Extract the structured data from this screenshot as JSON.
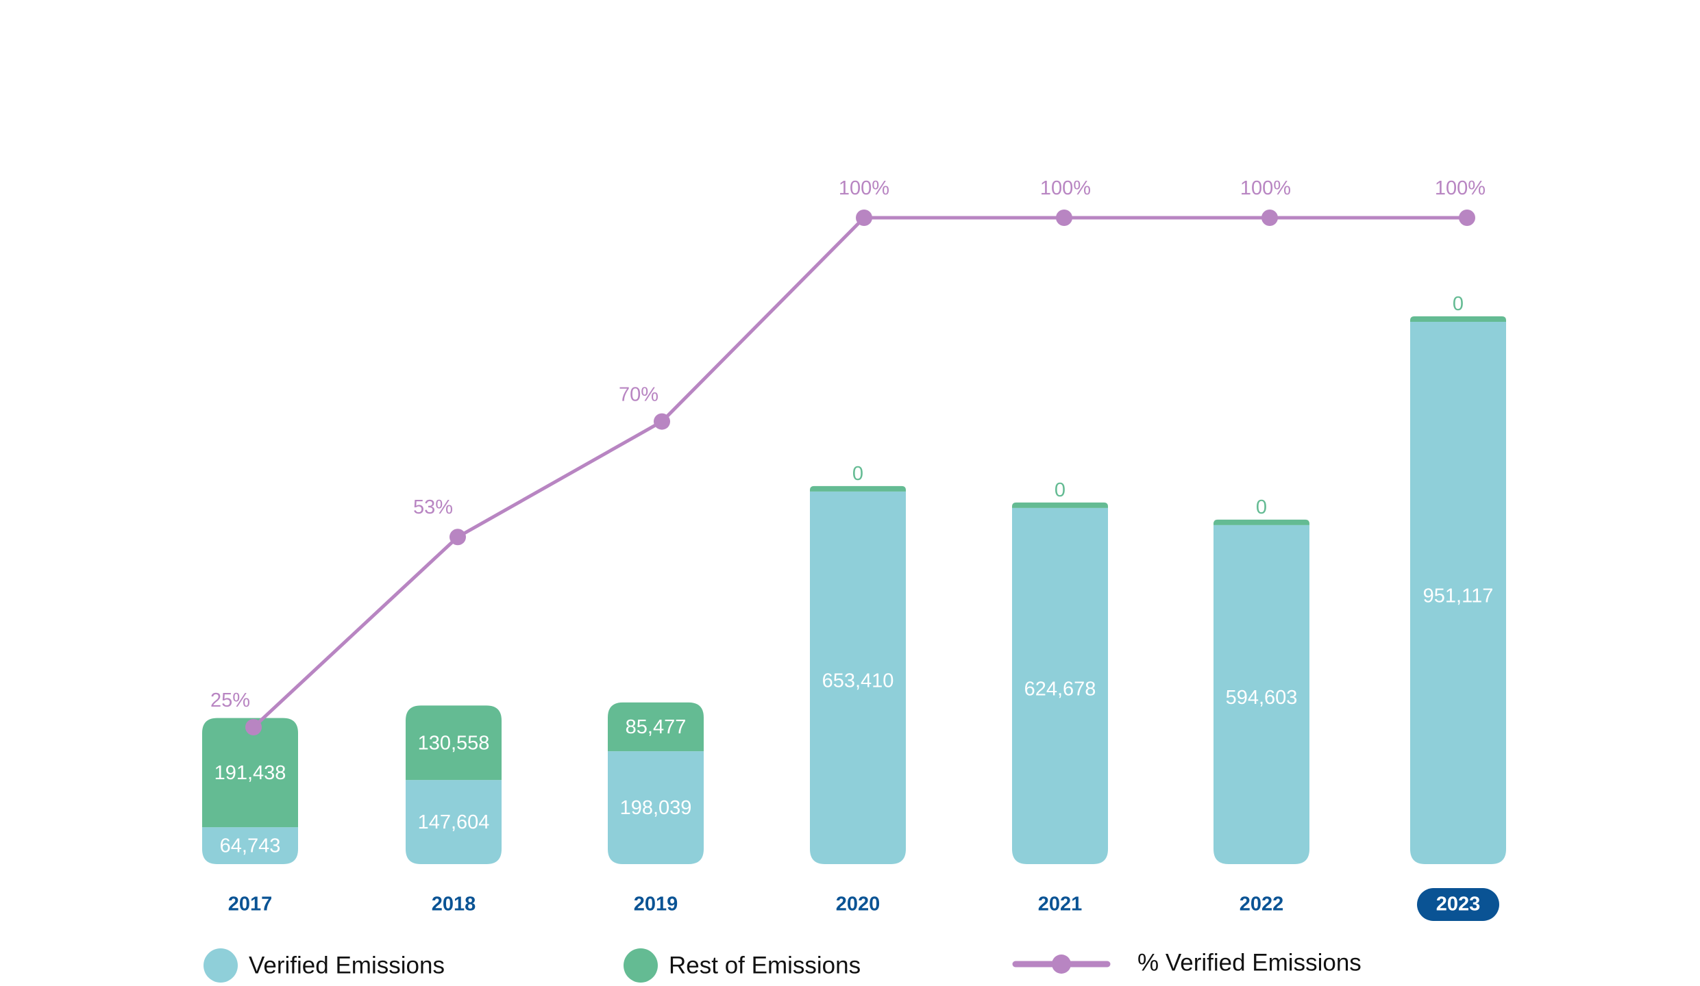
{
  "chart_data": {
    "type": "bar",
    "stacked": true,
    "categories": [
      "2017",
      "2018",
      "2019",
      "2020",
      "2021",
      "2022",
      "2023"
    ],
    "highlighted_category": "2023",
    "series": [
      {
        "name": "Verified Emissions",
        "type": "bar",
        "color": "#8fcfd9",
        "values": [
          64743,
          147604,
          198039,
          653410,
          624678,
          594603,
          951117
        ],
        "labels": [
          "64,743",
          "147,604",
          "198,039",
          "653,410",
          "624,678",
          "594,603",
          "951,117"
        ]
      },
      {
        "name": "Rest of Emissions",
        "type": "bar",
        "color": "#64bb93",
        "values": [
          191438,
          130558,
          85477,
          0,
          0,
          0,
          0
        ],
        "labels": [
          "191,438",
          "130,558",
          "85,477",
          "0",
          "0",
          "0",
          "0"
        ]
      },
      {
        "name": "% Verified Emissions",
        "type": "line",
        "color": "#b885c2",
        "values": [
          25,
          53,
          70,
          100,
          100,
          100,
          100
        ],
        "labels": [
          "25%",
          "53%",
          "70%",
          "100%",
          "100%",
          "100%",
          "100%"
        ]
      }
    ],
    "legend_position": "bottom",
    "grid": false,
    "bar_ylim": [
      0,
      951117
    ],
    "line_ylim": [
      0,
      100
    ],
    "colors": {
      "year_text": "#0a5394",
      "highlight_pill": "#0a5394",
      "highlight_text": "#ffffff"
    }
  }
}
